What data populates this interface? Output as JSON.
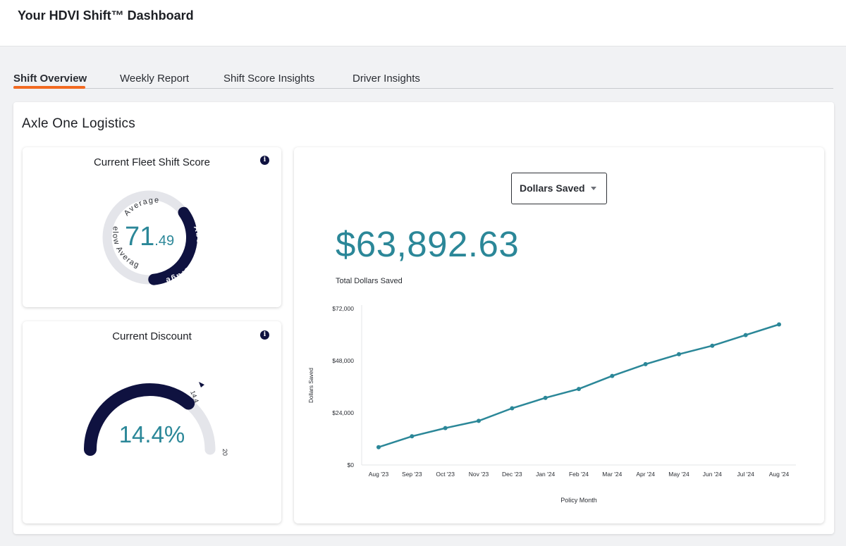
{
  "header": {
    "title": "Your HDVI Shift™ Dashboard"
  },
  "tabs": [
    {
      "label": "Shift Overview",
      "active": true
    },
    {
      "label": "Weekly Report",
      "active": false
    },
    {
      "label": "Shift Score Insights",
      "active": false
    },
    {
      "label": "Driver Insights",
      "active": false
    }
  ],
  "company": {
    "name": "Axle One Logistics"
  },
  "score_card": {
    "title": "Current Fleet Shift Score",
    "score_int": "71",
    "score_dec": ".49",
    "ring_labels": {
      "top": "Average",
      "left": "Below Average",
      "right": "Above Average"
    },
    "info_icon": "info-icon"
  },
  "discount_card": {
    "title": "Current Discount",
    "value_text": "14.4%",
    "value": 14.4,
    "max": 20,
    "marker_label": "14.4",
    "max_label": "20",
    "info_icon": "info-icon"
  },
  "savings": {
    "dropdown_label": "Dollars Saved",
    "total": "$63,892.63",
    "total_label": "Total Dollars Saved"
  },
  "colors": {
    "accent": "#2b8798",
    "navy": "#0f1240",
    "tab_underline": "#f26a21",
    "track": "#e4e5ea"
  },
  "chart_data": {
    "type": "line",
    "xlabel": "Policy Month",
    "ylabel": "Dollars Saved",
    "ylim": [
      0,
      72000
    ],
    "yticks": [
      0,
      24000,
      48000,
      72000
    ],
    "ytick_labels": [
      "$0",
      "$24,000",
      "$48,000",
      "$72,000"
    ],
    "categories": [
      "Aug '23",
      "Sep '23",
      "Oct '23",
      "Nov '23",
      "Dec '23",
      "Jan '24",
      "Feb '24",
      "Mar '24",
      "Apr '24",
      "May '24",
      "Jun '24",
      "Jul '24",
      "Aug '24"
    ],
    "series": [
      {
        "values": [
          8200,
          13200,
          17000,
          20300,
          26100,
          30900,
          35000,
          41000,
          46400,
          51000,
          54900,
          59800,
          64700
        ]
      }
    ],
    "grid": false
  }
}
